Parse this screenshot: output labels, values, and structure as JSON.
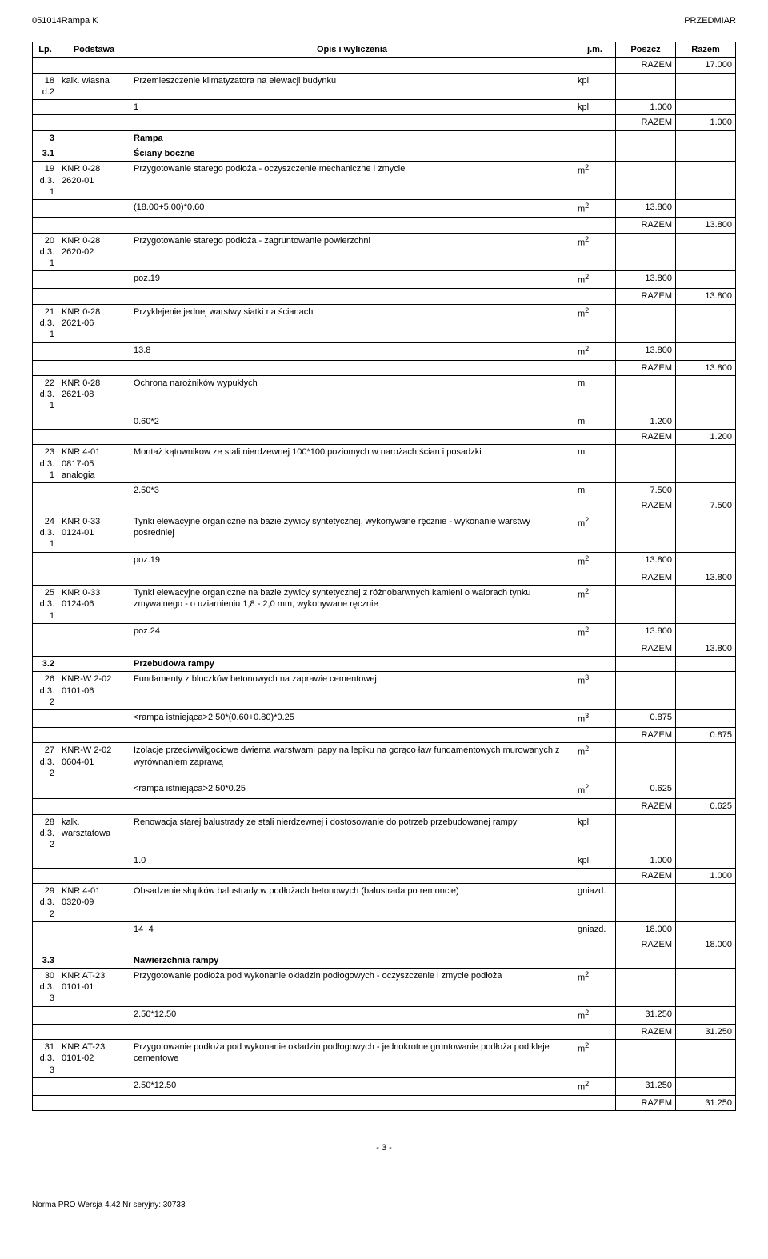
{
  "header": {
    "left": "051014Rampa K",
    "right": "PRZEDMIAR"
  },
  "columns": {
    "lp": "Lp.",
    "podstawa": "Podstawa",
    "opis": "Opis i wyliczenia",
    "jm": "j.m.",
    "poszcz": "Poszcz",
    "razem": "Razem"
  },
  "rows": [
    {
      "type": "razem",
      "label": "RAZEM",
      "razem": "17.000"
    },
    {
      "type": "item",
      "lp": "18\nd.2",
      "pod": "kalk. własna",
      "opis": "Przemieszczenie klimatyzatora na elewacji budynku",
      "jm": "kpl."
    },
    {
      "type": "calc",
      "opis": "1",
      "jm": "kpl.",
      "poszcz": "1.000"
    },
    {
      "type": "razem",
      "label": "RAZEM",
      "razem": "1.000"
    },
    {
      "type": "section",
      "lp": "3",
      "opis": "Rampa"
    },
    {
      "type": "section",
      "lp": "3.1",
      "opis": "Ściany boczne"
    },
    {
      "type": "item",
      "lp": "19\nd.3.\n1",
      "pod": "KNR 0-28\n2620-01",
      "opis": "Przygotowanie starego podłoża - oczyszczenie mechaniczne i zmycie",
      "jm": "m2"
    },
    {
      "type": "calc",
      "opis": "(18.00+5.00)*0.60",
      "jm": "m2",
      "poszcz": "13.800"
    },
    {
      "type": "razem",
      "label": "RAZEM",
      "razem": "13.800"
    },
    {
      "type": "item",
      "lp": "20\nd.3.\n1",
      "pod": "KNR 0-28\n2620-02",
      "opis": "Przygotowanie starego podłoża - zagruntowanie powierzchni",
      "jm": "m2"
    },
    {
      "type": "calc",
      "opis": "poz.19",
      "jm": "m2",
      "poszcz": "13.800"
    },
    {
      "type": "razem",
      "label": "RAZEM",
      "razem": "13.800"
    },
    {
      "type": "item",
      "lp": "21\nd.3.\n1",
      "pod": "KNR 0-28\n2621-06",
      "opis": "Przyklejenie jednej warstwy siatki na ścianach",
      "jm": "m2"
    },
    {
      "type": "calc",
      "opis": "13.8",
      "jm": "m2",
      "poszcz": "13.800"
    },
    {
      "type": "razem",
      "label": "RAZEM",
      "razem": "13.800"
    },
    {
      "type": "item",
      "lp": "22\nd.3.\n1",
      "pod": "KNR 0-28\n2621-08",
      "opis": "Ochrona narożników wypukłych",
      "jm": "m"
    },
    {
      "type": "calc",
      "opis": "0.60*2",
      "jm": "m",
      "poszcz": "1.200"
    },
    {
      "type": "razem",
      "label": "RAZEM",
      "razem": "1.200"
    },
    {
      "type": "item",
      "lp": "23\nd.3.\n1",
      "pod": "KNR 4-01\n0817-05\nanalogia",
      "opis": "Montaż kątownikow ze stali nierdzewnej 100*100 poziomych w narożach ścian i posadzki",
      "jm": "m"
    },
    {
      "type": "calc",
      "opis": "2.50*3",
      "jm": "m",
      "poszcz": "7.500"
    },
    {
      "type": "razem",
      "label": "RAZEM",
      "razem": "7.500"
    },
    {
      "type": "item",
      "lp": "24\nd.3.\n1",
      "pod": "KNR 0-33\n0124-01",
      "opis": "Tynki elewacyjne organiczne na bazie żywicy syntetycznej, wykonywane ręcznie - wykonanie warstwy pośredniej",
      "jm": "m2"
    },
    {
      "type": "calc",
      "opis": "poz.19",
      "jm": "m2",
      "poszcz": "13.800"
    },
    {
      "type": "razem",
      "label": "RAZEM",
      "razem": "13.800"
    },
    {
      "type": "item",
      "lp": "25\nd.3.\n1",
      "pod": "KNR 0-33\n0124-06",
      "opis": "Tynki elewacyjne organiczne na bazie żywicy syntetycznej z różnobarwnych kamieni o walorach tynku zmywalnego -  o uziarnieniu 1,8 - 2,0 mm, wykonywane ręcznie",
      "jm": "m2"
    },
    {
      "type": "calc",
      "opis": "poz.24",
      "jm": "m2",
      "poszcz": "13.800"
    },
    {
      "type": "razem",
      "label": "RAZEM",
      "razem": "13.800"
    },
    {
      "type": "section",
      "lp": "3.2",
      "opis": "Przebudowa rampy"
    },
    {
      "type": "item",
      "lp": "26\nd.3.\n2",
      "pod": "KNR-W 2-02\n0101-06",
      "opis": "Fundamenty z bloczków betonowych na zaprawie cementowej",
      "jm": "m3"
    },
    {
      "type": "calc",
      "opis": "<rampa istniejąca>2.50*(0.60+0.80)*0.25",
      "jm": "m3",
      "poszcz": "0.875"
    },
    {
      "type": "razem",
      "label": "RAZEM",
      "razem": "0.875"
    },
    {
      "type": "item",
      "lp": "27\nd.3.\n2",
      "pod": "KNR-W 2-02\n0604-01",
      "opis": "Izolacje przeciwwilgociowe dwiema warstwami papy na lepiku na gorąco ław fundamentowych murowanych z wyrównaniem zaprawą",
      "jm": "m2"
    },
    {
      "type": "calc",
      "opis": "<rampa istniejąca>2.50*0.25",
      "jm": "m2",
      "poszcz": "0.625"
    },
    {
      "type": "razem",
      "label": "RAZEM",
      "razem": "0.625"
    },
    {
      "type": "item",
      "lp": "28\nd.3.\n2",
      "pod": "kalk. warsztatowa",
      "opis": "Renowacja starej balustrady ze stali nierdzewnej i dostosowanie do potrzeb przebudowanej rampy",
      "jm": "kpl."
    },
    {
      "type": "calc",
      "opis": "1.0",
      "jm": "kpl.",
      "poszcz": "1.000"
    },
    {
      "type": "razem",
      "label": "RAZEM",
      "razem": "1.000"
    },
    {
      "type": "item",
      "lp": "29\nd.3.\n2",
      "pod": "KNR 4-01\n0320-09",
      "opis": "Obsadzenie słupków balustrady w podłożach betonowych (balustrada po remoncie)",
      "jm": "gniazd."
    },
    {
      "type": "calc",
      "opis": "14+4",
      "jm": "gniazd.",
      "poszcz": "18.000"
    },
    {
      "type": "razem",
      "label": "RAZEM",
      "razem": "18.000"
    },
    {
      "type": "section",
      "lp": "3.3",
      "opis": "Nawierzchnia rampy"
    },
    {
      "type": "item",
      "lp": "30\nd.3.\n3",
      "pod": "KNR AT-23\n0101-01",
      "opis": "Przygotowanie podłoża pod wykonanie okładzin podłogowych - oczyszczenie i zmycie podłoża",
      "jm": "m2"
    },
    {
      "type": "calc",
      "opis": "2.50*12.50",
      "jm": "m2",
      "poszcz": "31.250"
    },
    {
      "type": "razem",
      "label": "RAZEM",
      "razem": "31.250"
    },
    {
      "type": "item",
      "lp": "31\nd.3.\n3",
      "pod": "KNR AT-23\n0101-02",
      "opis": "Przygotowanie podłoża pod wykonanie okładzin podłogowych - jednokrotne gruntowanie podłoża pod kleje cementowe",
      "jm": "m2"
    },
    {
      "type": "calc",
      "opis": "2.50*12.50",
      "jm": "m2",
      "poszcz": "31.250"
    },
    {
      "type": "razem",
      "label": "RAZEM",
      "razem": "31.250"
    }
  ],
  "pageNumber": "- 3 -",
  "footerNote": "Norma PRO Wersja 4.42 Nr seryjny: 30733"
}
